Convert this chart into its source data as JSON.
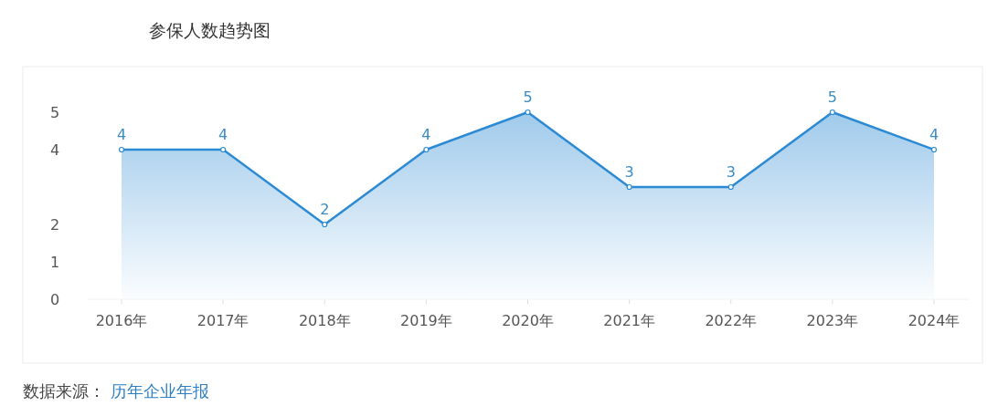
{
  "chart_data": {
    "type": "area",
    "title": "参保人数趋势图",
    "categories": [
      "2016年",
      "2017年",
      "2018年",
      "2019年",
      "2020年",
      "2021年",
      "2022年",
      "2023年",
      "2024年"
    ],
    "values": [
      4,
      4,
      2,
      4,
      5,
      3,
      3,
      5,
      4
    ],
    "color": "#2b8ad3",
    "ylim": [
      0,
      5
    ],
    "yticks": [
      0,
      1,
      2,
      4,
      5
    ],
    "data_labels": true,
    "marker": "circle",
    "grid": false,
    "annotations": [
      "数据来源：",
      "历年企业年报"
    ]
  }
}
